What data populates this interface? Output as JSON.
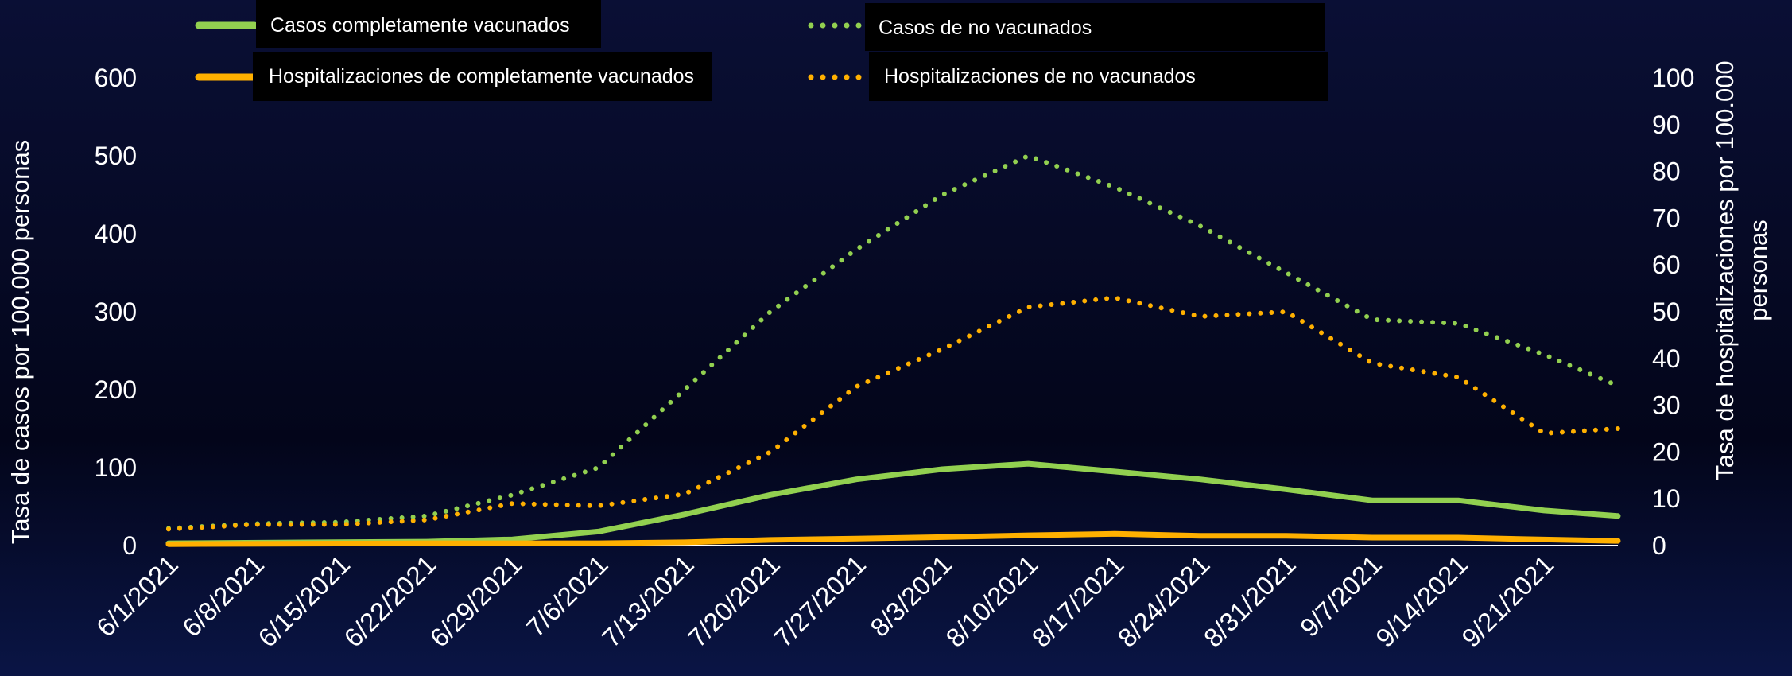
{
  "chart_data": {
    "type": "line",
    "title": "",
    "ylabel": "Tasa de casos por 100.000 personas",
    "y2label_line1": "Tasa de hospitalizaciones por 100.000",
    "y2label_line2": "personas",
    "ylim": [
      0,
      600
    ],
    "y2lim": [
      0,
      100
    ],
    "yticks": [
      "600",
      "500",
      "400",
      "300",
      "200",
      "100",
      "0"
    ],
    "y2ticks": [
      "100",
      "90",
      "80",
      "70",
      "60",
      "50",
      "40",
      "30",
      "20",
      "10",
      "0"
    ],
    "x_start": "6/1/2021",
    "xtick_labels": [
      "6/1/2021",
      "6/8/2021",
      "6/15/2021",
      "6/22/2021",
      "6/29/2021",
      "7/6/2021",
      "7/13/2021",
      "7/20/2021",
      "7/27/2021",
      "8/3/2021",
      "8/10/2021",
      "8/17/2021",
      "8/24/2021",
      "8/31/2021",
      "9/7/2021",
      "9/14/2021",
      "9/21/2021"
    ],
    "x_end": "9/27/2021",
    "legend_position": "top",
    "series": [
      {
        "name": "Casos completamente vacunados",
        "axis": "left",
        "style": "solid",
        "color": "#92d050",
        "points": [
          [
            "6/1/2021",
            3
          ],
          [
            "6/22/2021",
            5
          ],
          [
            "6/29/2021",
            8
          ],
          [
            "7/6/2021",
            18
          ],
          [
            "7/13/2021",
            40
          ],
          [
            "7/20/2021",
            65
          ],
          [
            "7/27/2021",
            85
          ],
          [
            "8/3/2021",
            98
          ],
          [
            "8/10/2021",
            105
          ],
          [
            "8/17/2021",
            95
          ],
          [
            "8/24/2021",
            85
          ],
          [
            "8/31/2021",
            72
          ],
          [
            "9/7/2021",
            58
          ],
          [
            "9/14/2021",
            58
          ],
          [
            "9/21/2021",
            45
          ],
          [
            "9/27/2021",
            38
          ]
        ]
      },
      {
        "name": "Casos de no vacunados",
        "axis": "left",
        "style": "dotted",
        "color": "#92d050",
        "points": [
          [
            "6/1/2021",
            22
          ],
          [
            "6/8/2021",
            28
          ],
          [
            "6/15/2021",
            30
          ],
          [
            "6/22/2021",
            38
          ],
          [
            "6/29/2021",
            65
          ],
          [
            "7/6/2021",
            100
          ],
          [
            "7/13/2021",
            200
          ],
          [
            "7/20/2021",
            300
          ],
          [
            "7/27/2021",
            380
          ],
          [
            "8/3/2021",
            450
          ],
          [
            "8/10/2021",
            500
          ],
          [
            "8/17/2021",
            460
          ],
          [
            "8/24/2021",
            410
          ],
          [
            "8/31/2021",
            350
          ],
          [
            "9/7/2021",
            290
          ],
          [
            "9/14/2021",
            285
          ],
          [
            "9/21/2021",
            245
          ],
          [
            "9/27/2021",
            205
          ]
        ]
      },
      {
        "name": "Hospitalizaciones de completamente vacunados",
        "axis": "right",
        "style": "solid",
        "color": "#ffb000",
        "points": [
          [
            "6/1/2021",
            0.3
          ],
          [
            "6/22/2021",
            0.5
          ],
          [
            "7/6/2021",
            0.5
          ],
          [
            "7/13/2021",
            0.7
          ],
          [
            "7/20/2021",
            1.2
          ],
          [
            "7/27/2021",
            1.5
          ],
          [
            "8/3/2021",
            1.8
          ],
          [
            "8/10/2021",
            2.2
          ],
          [
            "8/17/2021",
            2.5
          ],
          [
            "8/24/2021",
            2.1
          ],
          [
            "8/31/2021",
            2.1
          ],
          [
            "9/7/2021",
            1.7
          ],
          [
            "9/14/2021",
            1.7
          ],
          [
            "9/21/2021",
            1.3
          ],
          [
            "9/27/2021",
            1.0
          ]
        ]
      },
      {
        "name": "Hospitalizaciones de no vacunados",
        "axis": "right",
        "style": "dotted",
        "color": "#ffb000",
        "points": [
          [
            "6/1/2021",
            3.5
          ],
          [
            "6/8/2021",
            4.5
          ],
          [
            "6/15/2021",
            4.5
          ],
          [
            "6/22/2021",
            5.5
          ],
          [
            "6/29/2021",
            9
          ],
          [
            "7/6/2021",
            8.5
          ],
          [
            "7/13/2021",
            11
          ],
          [
            "7/20/2021",
            20
          ],
          [
            "7/27/2021",
            34
          ],
          [
            "8/3/2021",
            42
          ],
          [
            "8/10/2021",
            51
          ],
          [
            "8/17/2021",
            53
          ],
          [
            "8/24/2021",
            49
          ],
          [
            "8/31/2021",
            50
          ],
          [
            "9/7/2021",
            39
          ],
          [
            "9/14/2021",
            36
          ],
          [
            "9/21/2021",
            24
          ],
          [
            "9/27/2021",
            25
          ]
        ]
      }
    ]
  }
}
